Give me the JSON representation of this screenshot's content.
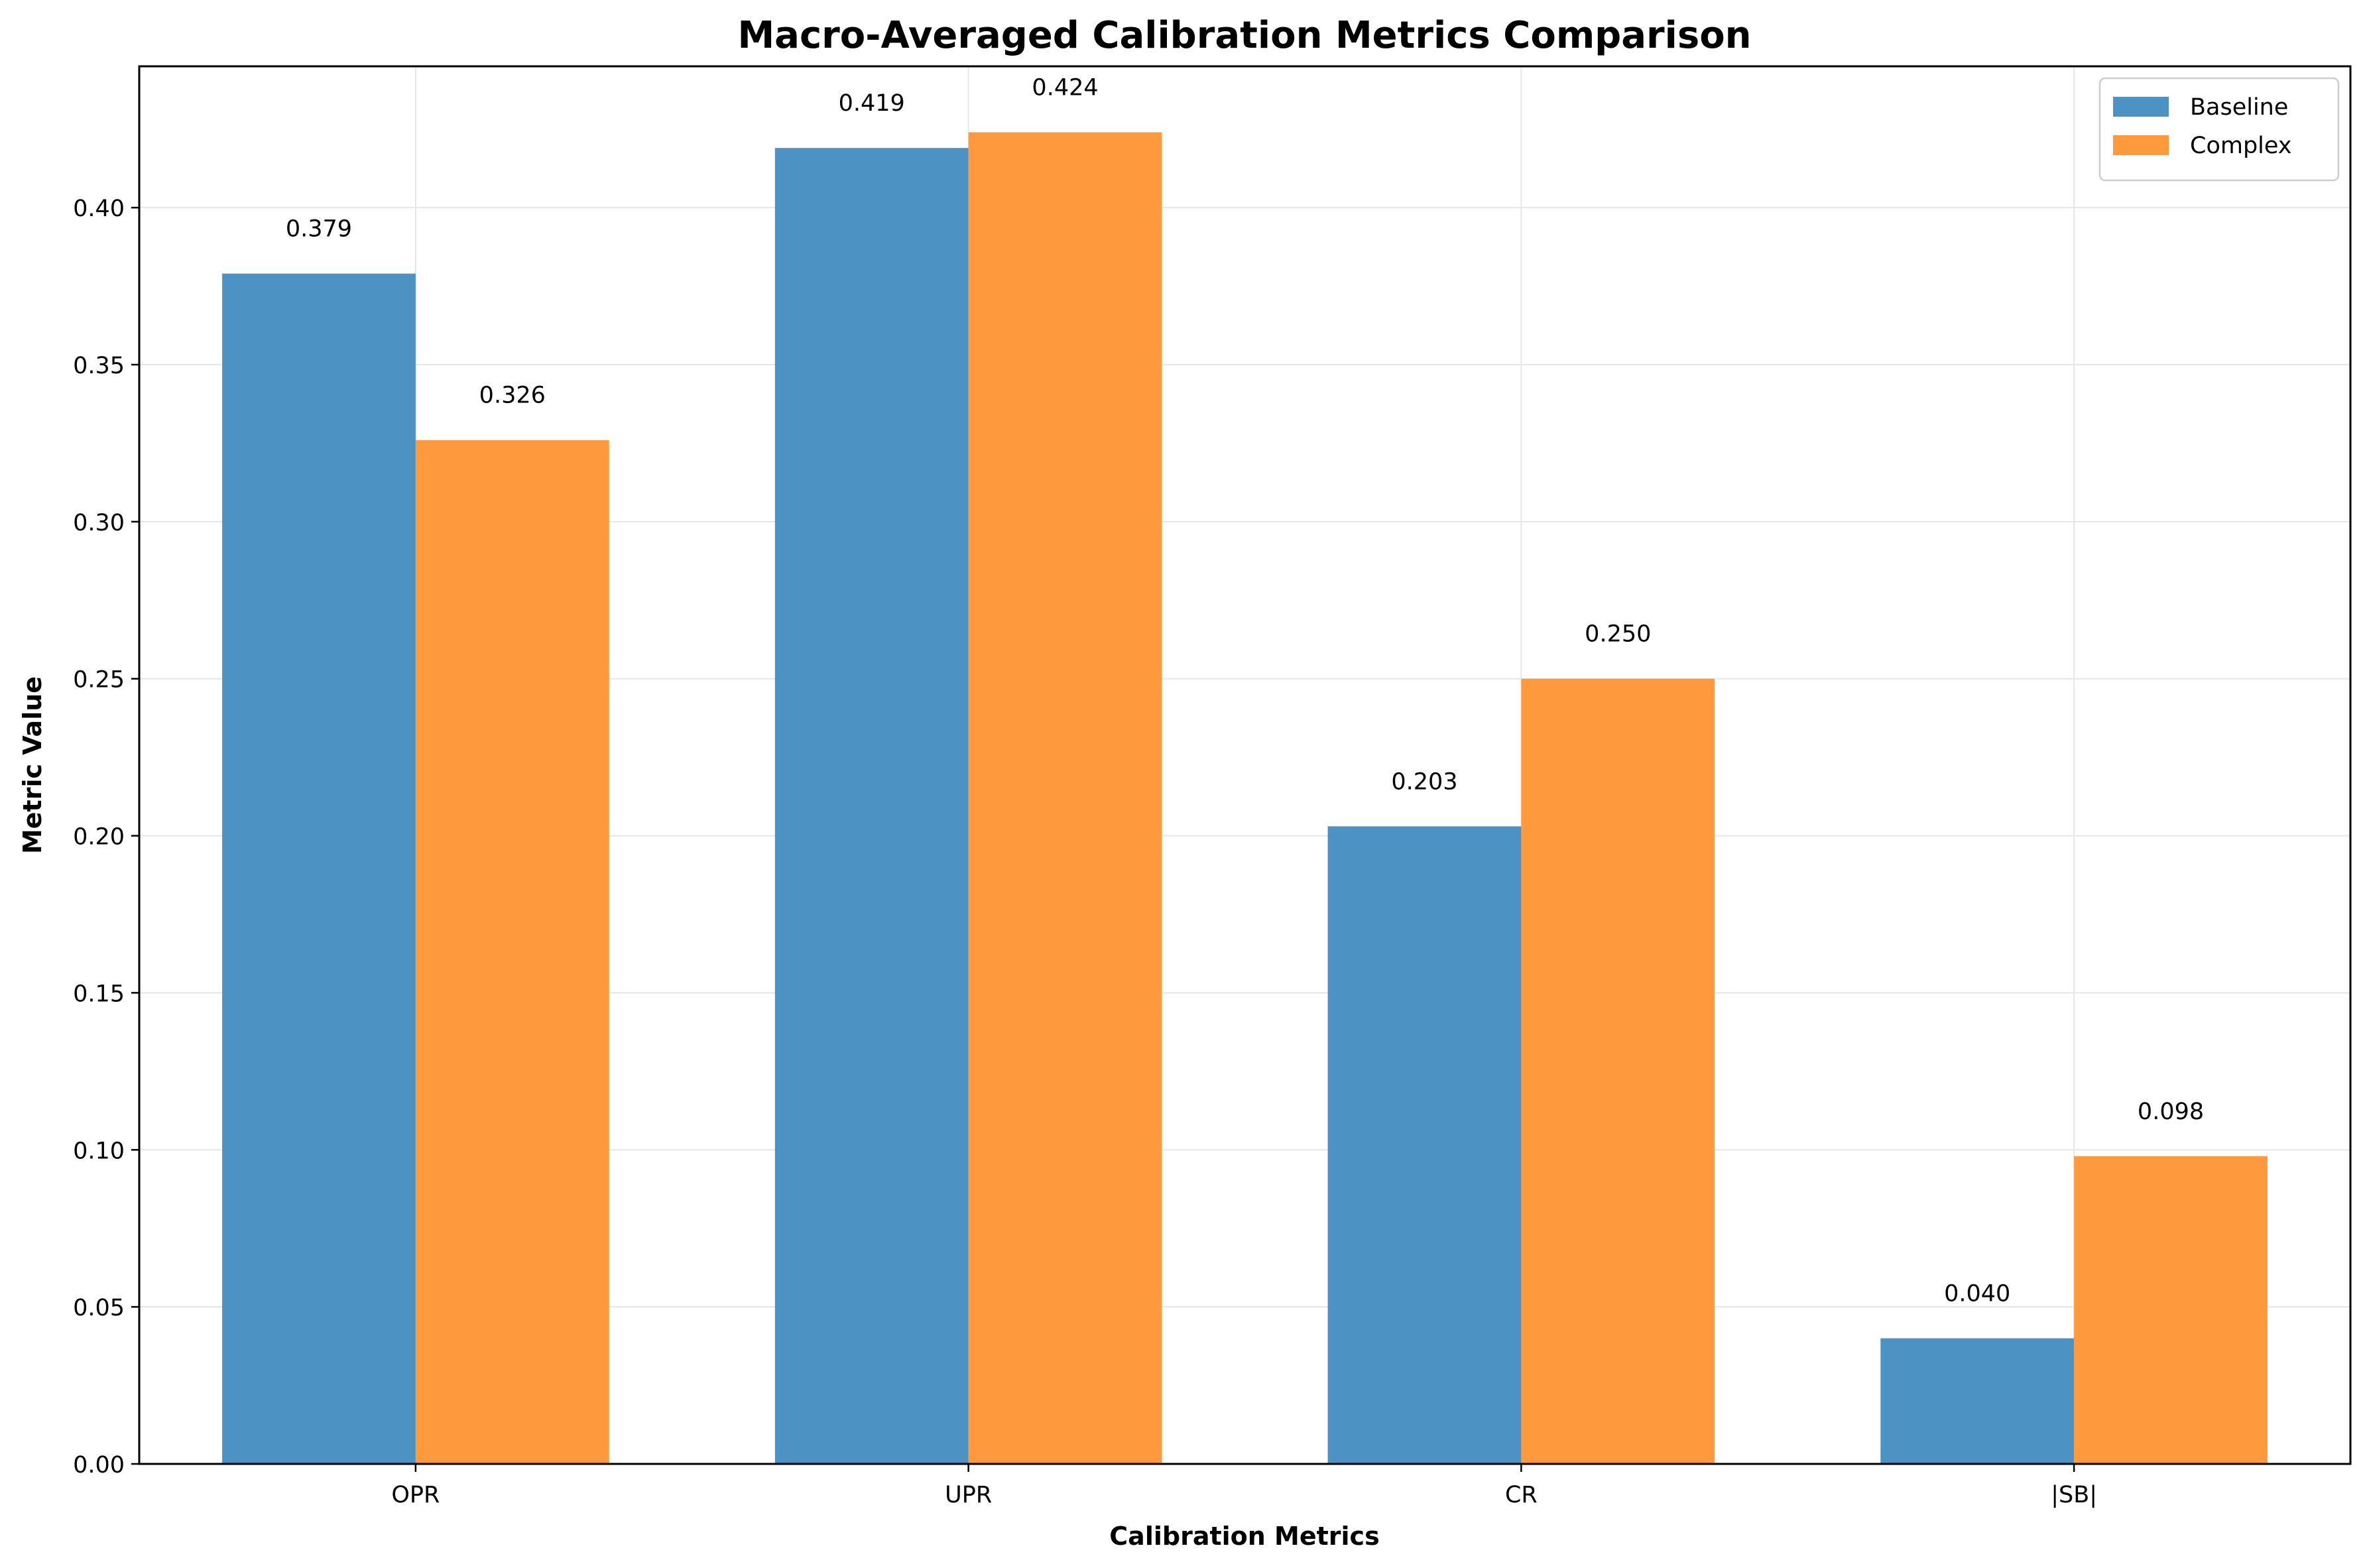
{
  "chart_data": {
    "type": "bar",
    "title": "Macro-Averaged Calibration Metrics Comparison",
    "xlabel": "Calibration Metrics",
    "ylabel": "Metric Value",
    "categories": [
      "OPR",
      "UPR",
      "CR",
      "|SB|"
    ],
    "series": [
      {
        "name": "Baseline",
        "color": "#4c92c3",
        "values": [
          0.379,
          0.419,
          0.203,
          0.04
        ],
        "labels": [
          "0.379",
          "0.419",
          "0.203",
          "0.040"
        ]
      },
      {
        "name": "Complex",
        "color": "#ff993e",
        "values": [
          0.326,
          0.424,
          0.25,
          0.098
        ],
        "labels": [
          "0.326",
          "0.424",
          "0.250",
          "0.098"
        ]
      }
    ],
    "ylim": [
      0,
      0.445
    ],
    "yticks": [
      0.0,
      0.05,
      0.1,
      0.15,
      0.2,
      0.25,
      0.3,
      0.35,
      0.4
    ],
    "ytick_labels": [
      "0.00",
      "0.05",
      "0.10",
      "0.15",
      "0.20",
      "0.25",
      "0.30",
      "0.35",
      "0.40"
    ],
    "grid": true,
    "legend_position": "top-right"
  }
}
